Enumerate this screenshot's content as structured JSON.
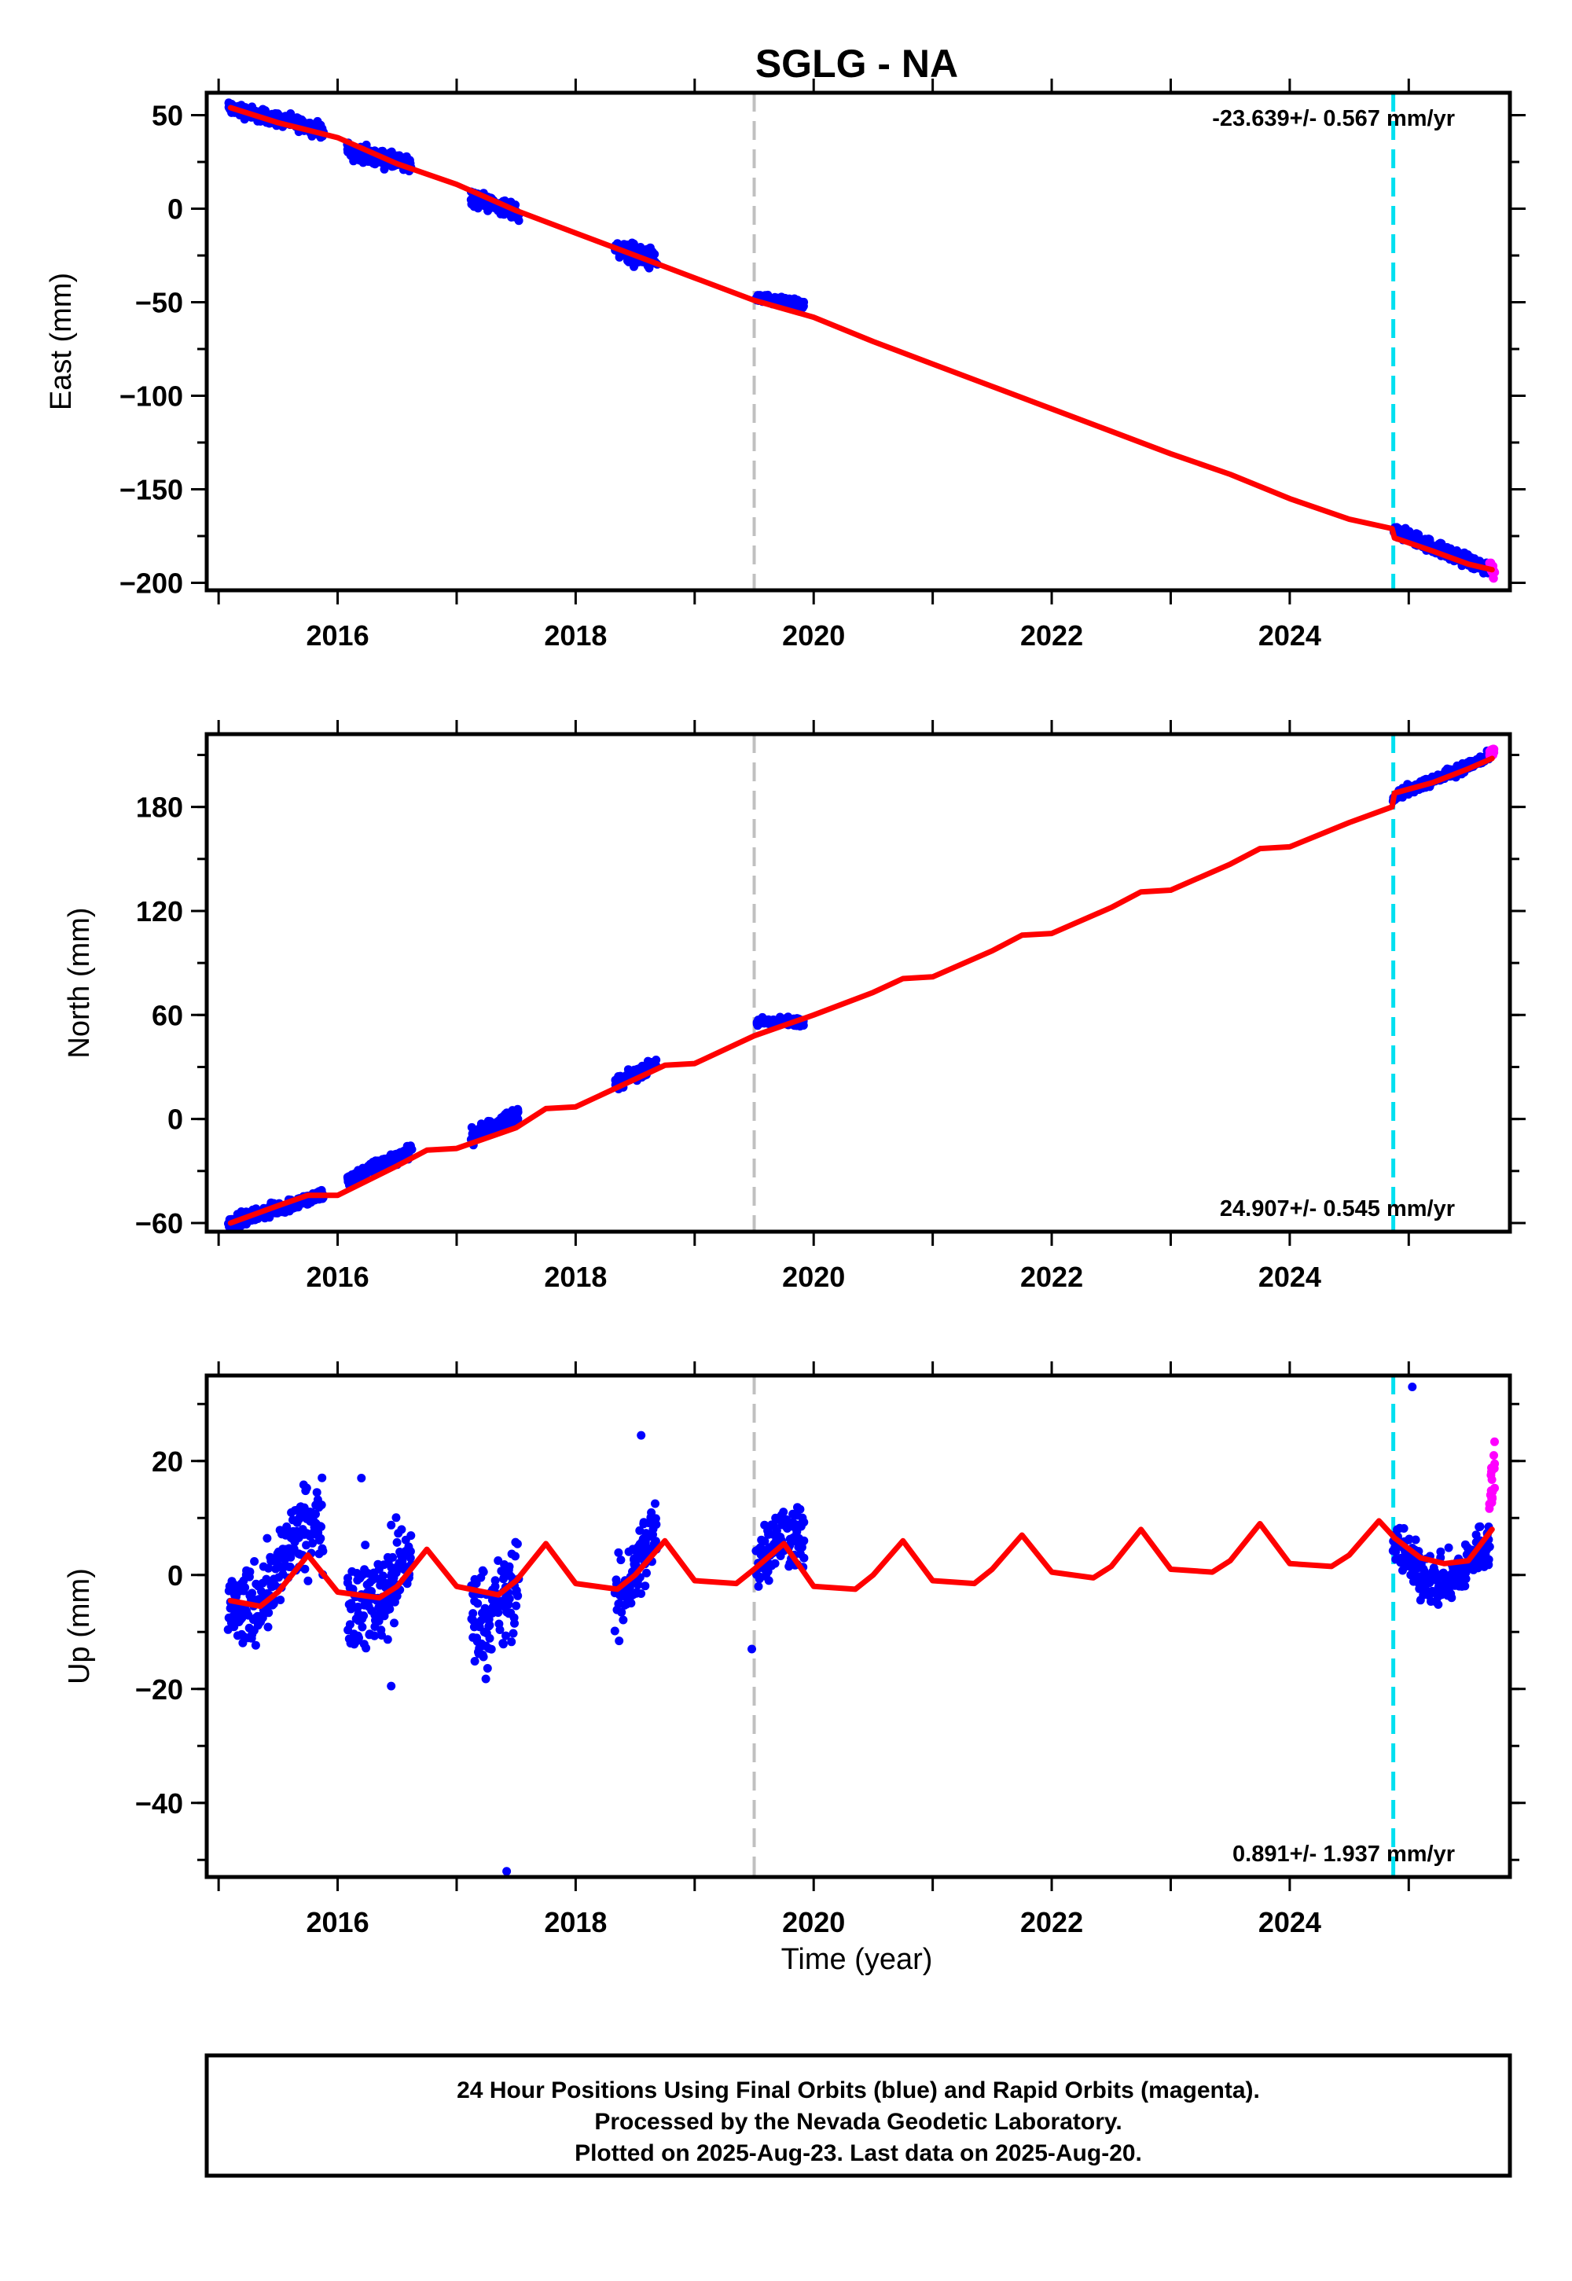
{
  "chart_data": [
    {
      "type": "scatter",
      "id": "east",
      "title": "SGLG - NA",
      "ylabel": "East (mm)",
      "xlabel": "",
      "xlim": [
        2014.9,
        2025.85
      ],
      "ylim": [
        -204,
        62
      ],
      "xticks": [
        2016,
        2018,
        2020,
        2022,
        2024
      ],
      "xtick_labels": [
        "2016",
        "2018",
        "2020",
        "2022",
        "2024"
      ],
      "yticks": [
        50,
        0,
        -50,
        -100,
        -150,
        -200
      ],
      "ytick_labels": [
        "50",
        "0",
        "−50",
        "−100",
        "−150",
        "−200"
      ],
      "rate": "-23.639+/- 0.567 mm/yr",
      "rate_position": "top-right",
      "vlines": [
        {
          "x": 2019.5,
          "color": "#c0c0c0",
          "style": "dashed"
        },
        {
          "x": 2024.87,
          "color": "#00e0f0",
          "style": "dashed"
        }
      ],
      "series": [
        {
          "kind": "final_orbits",
          "color": "#0000ff",
          "segments": [
            {
              "start": 2015.08,
              "end": 2015.88,
              "a": 54,
              "b": 42,
              "noise": 2.5
            },
            {
              "start": 2016.08,
              "end": 2016.62,
              "a": 31,
              "b": 23,
              "noise": 3
            },
            {
              "start": 2017.12,
              "end": 2017.52,
              "a": 6,
              "b": -2,
              "noise": 3
            },
            {
              "start": 2018.33,
              "end": 2018.68,
              "a": -21,
              "b": -28,
              "noise": 4
            },
            {
              "start": 2019.52,
              "end": 2019.92,
              "a": -48,
              "b": -52,
              "noise": 1.8
            },
            {
              "start": 2024.87,
              "end": 2025.68,
              "a": -172,
              "b": -193,
              "noise": 2.5
            }
          ]
        },
        {
          "kind": "rapid_orbits",
          "color": "#ff00ff",
          "segments": [
            {
              "start": 2025.68,
              "end": 2025.72,
              "a": -189,
              "b": -196,
              "noise": 2.5
            }
          ]
        },
        {
          "kind": "model",
          "color": "#ff0000",
          "x": [
            2015.1,
            2015.5,
            2016.0,
            2016.5,
            2017.0,
            2017.5,
            2018.0,
            2018.5,
            2019.0,
            2019.5,
            2020.0,
            2020.5,
            2021.0,
            2021.5,
            2022.0,
            2022.5,
            2023.0,
            2023.5,
            2024.0,
            2024.5,
            2024.86,
            2024.88,
            2025.2,
            2025.5,
            2025.7
          ],
          "y": [
            54,
            46,
            38,
            24,
            13,
            -1,
            -13,
            -25,
            -37,
            -49,
            -58,
            -71,
            -83,
            -95,
            -107,
            -119,
            -131,
            -142,
            -155,
            -166,
            -171,
            -176,
            -183,
            -190,
            -193
          ]
        }
      ]
    },
    {
      "type": "scatter",
      "id": "north",
      "title": "",
      "ylabel": "North (mm)",
      "xlabel": "",
      "xlim": [
        2014.9,
        2025.85
      ],
      "ylim": [
        -65,
        222
      ],
      "xticks": [
        2016,
        2018,
        2020,
        2022,
        2024
      ],
      "xtick_labels": [
        "2016",
        "2018",
        "2020",
        "2022",
        "2024"
      ],
      "yticks": [
        180,
        120,
        60,
        0,
        -60
      ],
      "ytick_labels": [
        "180",
        "120",
        "60",
        "0",
        "−60"
      ],
      "rate": "24.907+/- 0.545 mm/yr",
      "rate_position": "bottom-right",
      "vlines": [
        {
          "x": 2019.5,
          "color": "#c0c0c0",
          "style": "dashed"
        },
        {
          "x": 2024.87,
          "color": "#00e0f0",
          "style": "dashed"
        }
      ],
      "series": [
        {
          "kind": "final_orbits",
          "color": "#0000ff",
          "segments": [
            {
              "start": 2015.08,
              "end": 2015.88,
              "a": -60,
              "b": -44,
              "noise": 2.5
            },
            {
              "start": 2016.08,
              "end": 2016.62,
              "a": -35,
              "b": -18,
              "noise": 2.5
            },
            {
              "start": 2017.12,
              "end": 2017.52,
              "a": -10,
              "b": 3,
              "noise": 3
            },
            {
              "start": 2018.33,
              "end": 2018.68,
              "a": 20,
              "b": 32,
              "noise": 2.5
            },
            {
              "start": 2019.52,
              "end": 2019.92,
              "a": 56,
              "b": 56,
              "noise": 1.8
            },
            {
              "start": 2024.87,
              "end": 2025.68,
              "a": 186,
              "b": 209,
              "noise": 2
            }
          ]
        },
        {
          "kind": "rapid_orbits",
          "color": "#ff00ff",
          "segments": [
            {
              "start": 2025.68,
              "end": 2025.72,
              "a": 209,
              "b": 213,
              "noise": 2
            }
          ]
        },
        {
          "kind": "model",
          "color": "#ff0000",
          "x": [
            2015.1,
            2015.5,
            2015.75,
            2016.0,
            2016.5,
            2016.75,
            2017.0,
            2017.5,
            2017.75,
            2018.0,
            2018.5,
            2018.75,
            2019.0,
            2019.5,
            2020.0,
            2020.5,
            2020.75,
            2021.0,
            2021.5,
            2021.75,
            2022.0,
            2022.5,
            2022.75,
            2023.0,
            2023.5,
            2023.75,
            2024.0,
            2024.5,
            2024.86,
            2024.88,
            2025.2,
            2025.5,
            2025.7
          ],
          "y": [
            -60,
            -50,
            -44,
            -44,
            -27,
            -18,
            -17,
            -5,
            6,
            7,
            23,
            31,
            32,
            48,
            60,
            73,
            81,
            82,
            97,
            106,
            107,
            122,
            131,
            132,
            147,
            156,
            157,
            171,
            180,
            188,
            194,
            202,
            208
          ]
        }
      ]
    },
    {
      "type": "scatter",
      "id": "up",
      "title": "",
      "ylabel": "Up (mm)",
      "xlabel": "Time (year)",
      "xlim": [
        2014.9,
        2025.85
      ],
      "ylim": [
        -53,
        35
      ],
      "xticks": [
        2016,
        2018,
        2020,
        2022,
        2024
      ],
      "xtick_labels": [
        "2016",
        "2018",
        "2020",
        "2022",
        "2024"
      ],
      "yticks": [
        20,
        0,
        -20,
        -40
      ],
      "ytick_labels": [
        "20",
        "0",
        "−20",
        "−40"
      ],
      "rate": "0.891+/- 1.937 mm/yr",
      "rate_position": "bottom-right",
      "vlines": [
        {
          "x": 2019.5,
          "color": "#c0c0c0",
          "style": "dashed"
        },
        {
          "x": 2024.87,
          "color": "#00e0f0",
          "style": "dashed"
        }
      ],
      "series": [
        {
          "kind": "final_orbits",
          "color": "#0000ff",
          "segments": [
            {
              "start": 2015.08,
              "end": 2015.88,
              "a": -4,
              "b": 6,
              "noise": 5
            },
            {
              "start": 2016.08,
              "end": 2016.62,
              "a": -2,
              "b": 1,
              "noise": 6
            },
            {
              "start": 2017.12,
              "end": 2017.52,
              "a": -4,
              "b": -2,
              "noise": 6
            },
            {
              "start": 2018.33,
              "end": 2018.68,
              "a": -2,
              "b": 4,
              "noise": 5
            },
            {
              "start": 2019.52,
              "end": 2019.92,
              "a": 2,
              "b": 4,
              "noise": 4
            },
            {
              "start": 2024.87,
              "end": 2025.68,
              "a": 3,
              "b": 2,
              "noise": 3
            }
          ]
        },
        {
          "kind": "rapid_orbits",
          "color": "#ff00ff",
          "segments": [
            {
              "start": 2025.68,
              "end": 2025.72,
              "a": 8,
              "b": 16,
              "noise": 4
            }
          ]
        },
        {
          "kind": "outliers",
          "color": "#0000ff",
          "x": [
            2017.42,
            2018.55,
            2025.03,
            2016.45,
            2016.2,
            2019.48
          ],
          "y": [
            -52,
            24.5,
            33,
            -19.5,
            17,
            -13
          ]
        },
        {
          "kind": "model",
          "color": "#ff0000",
          "x": [
            2015.1,
            2015.35,
            2015.5,
            2015.75,
            2016.0,
            2016.35,
            2016.5,
            2016.75,
            2017.0,
            2017.35,
            2017.5,
            2017.75,
            2018.0,
            2018.35,
            2018.5,
            2018.75,
            2019.0,
            2019.35,
            2019.5,
            2019.75,
            2020.0,
            2020.35,
            2020.5,
            2020.75,
            2021.0,
            2021.35,
            2021.5,
            2021.75,
            2022.0,
            2022.35,
            2022.5,
            2022.75,
            2023.0,
            2023.35,
            2023.5,
            2023.75,
            2024.0,
            2024.35,
            2024.5,
            2024.75,
            2024.86,
            2024.88,
            2025.1,
            2025.3,
            2025.5,
            2025.7
          ],
          "y": [
            -4.5,
            -5.5,
            -3,
            3.5,
            -3,
            -4,
            -2,
            4.5,
            -2,
            -3.5,
            -1,
            5.5,
            -1.5,
            -2.5,
            0,
            6,
            -1,
            -1.5,
            1,
            5.5,
            -2,
            -2.5,
            0,
            6,
            -1,
            -1.5,
            1,
            7,
            0.5,
            -0.5,
            1.5,
            8,
            1,
            0.5,
            2.5,
            9,
            2,
            1.5,
            3.5,
            9.5,
            7,
            6.5,
            3,
            2,
            2.5,
            8
          ]
        }
      ]
    }
  ],
  "footer": {
    "line1": "24 Hour Positions Using Final Orbits (blue) and Rapid Orbits (magenta).",
    "line2": "Processed by the Nevada Geodetic Laboratory.",
    "line3": "Plotted on 2025-Aug-23. Last data on 2025-Aug-20."
  }
}
